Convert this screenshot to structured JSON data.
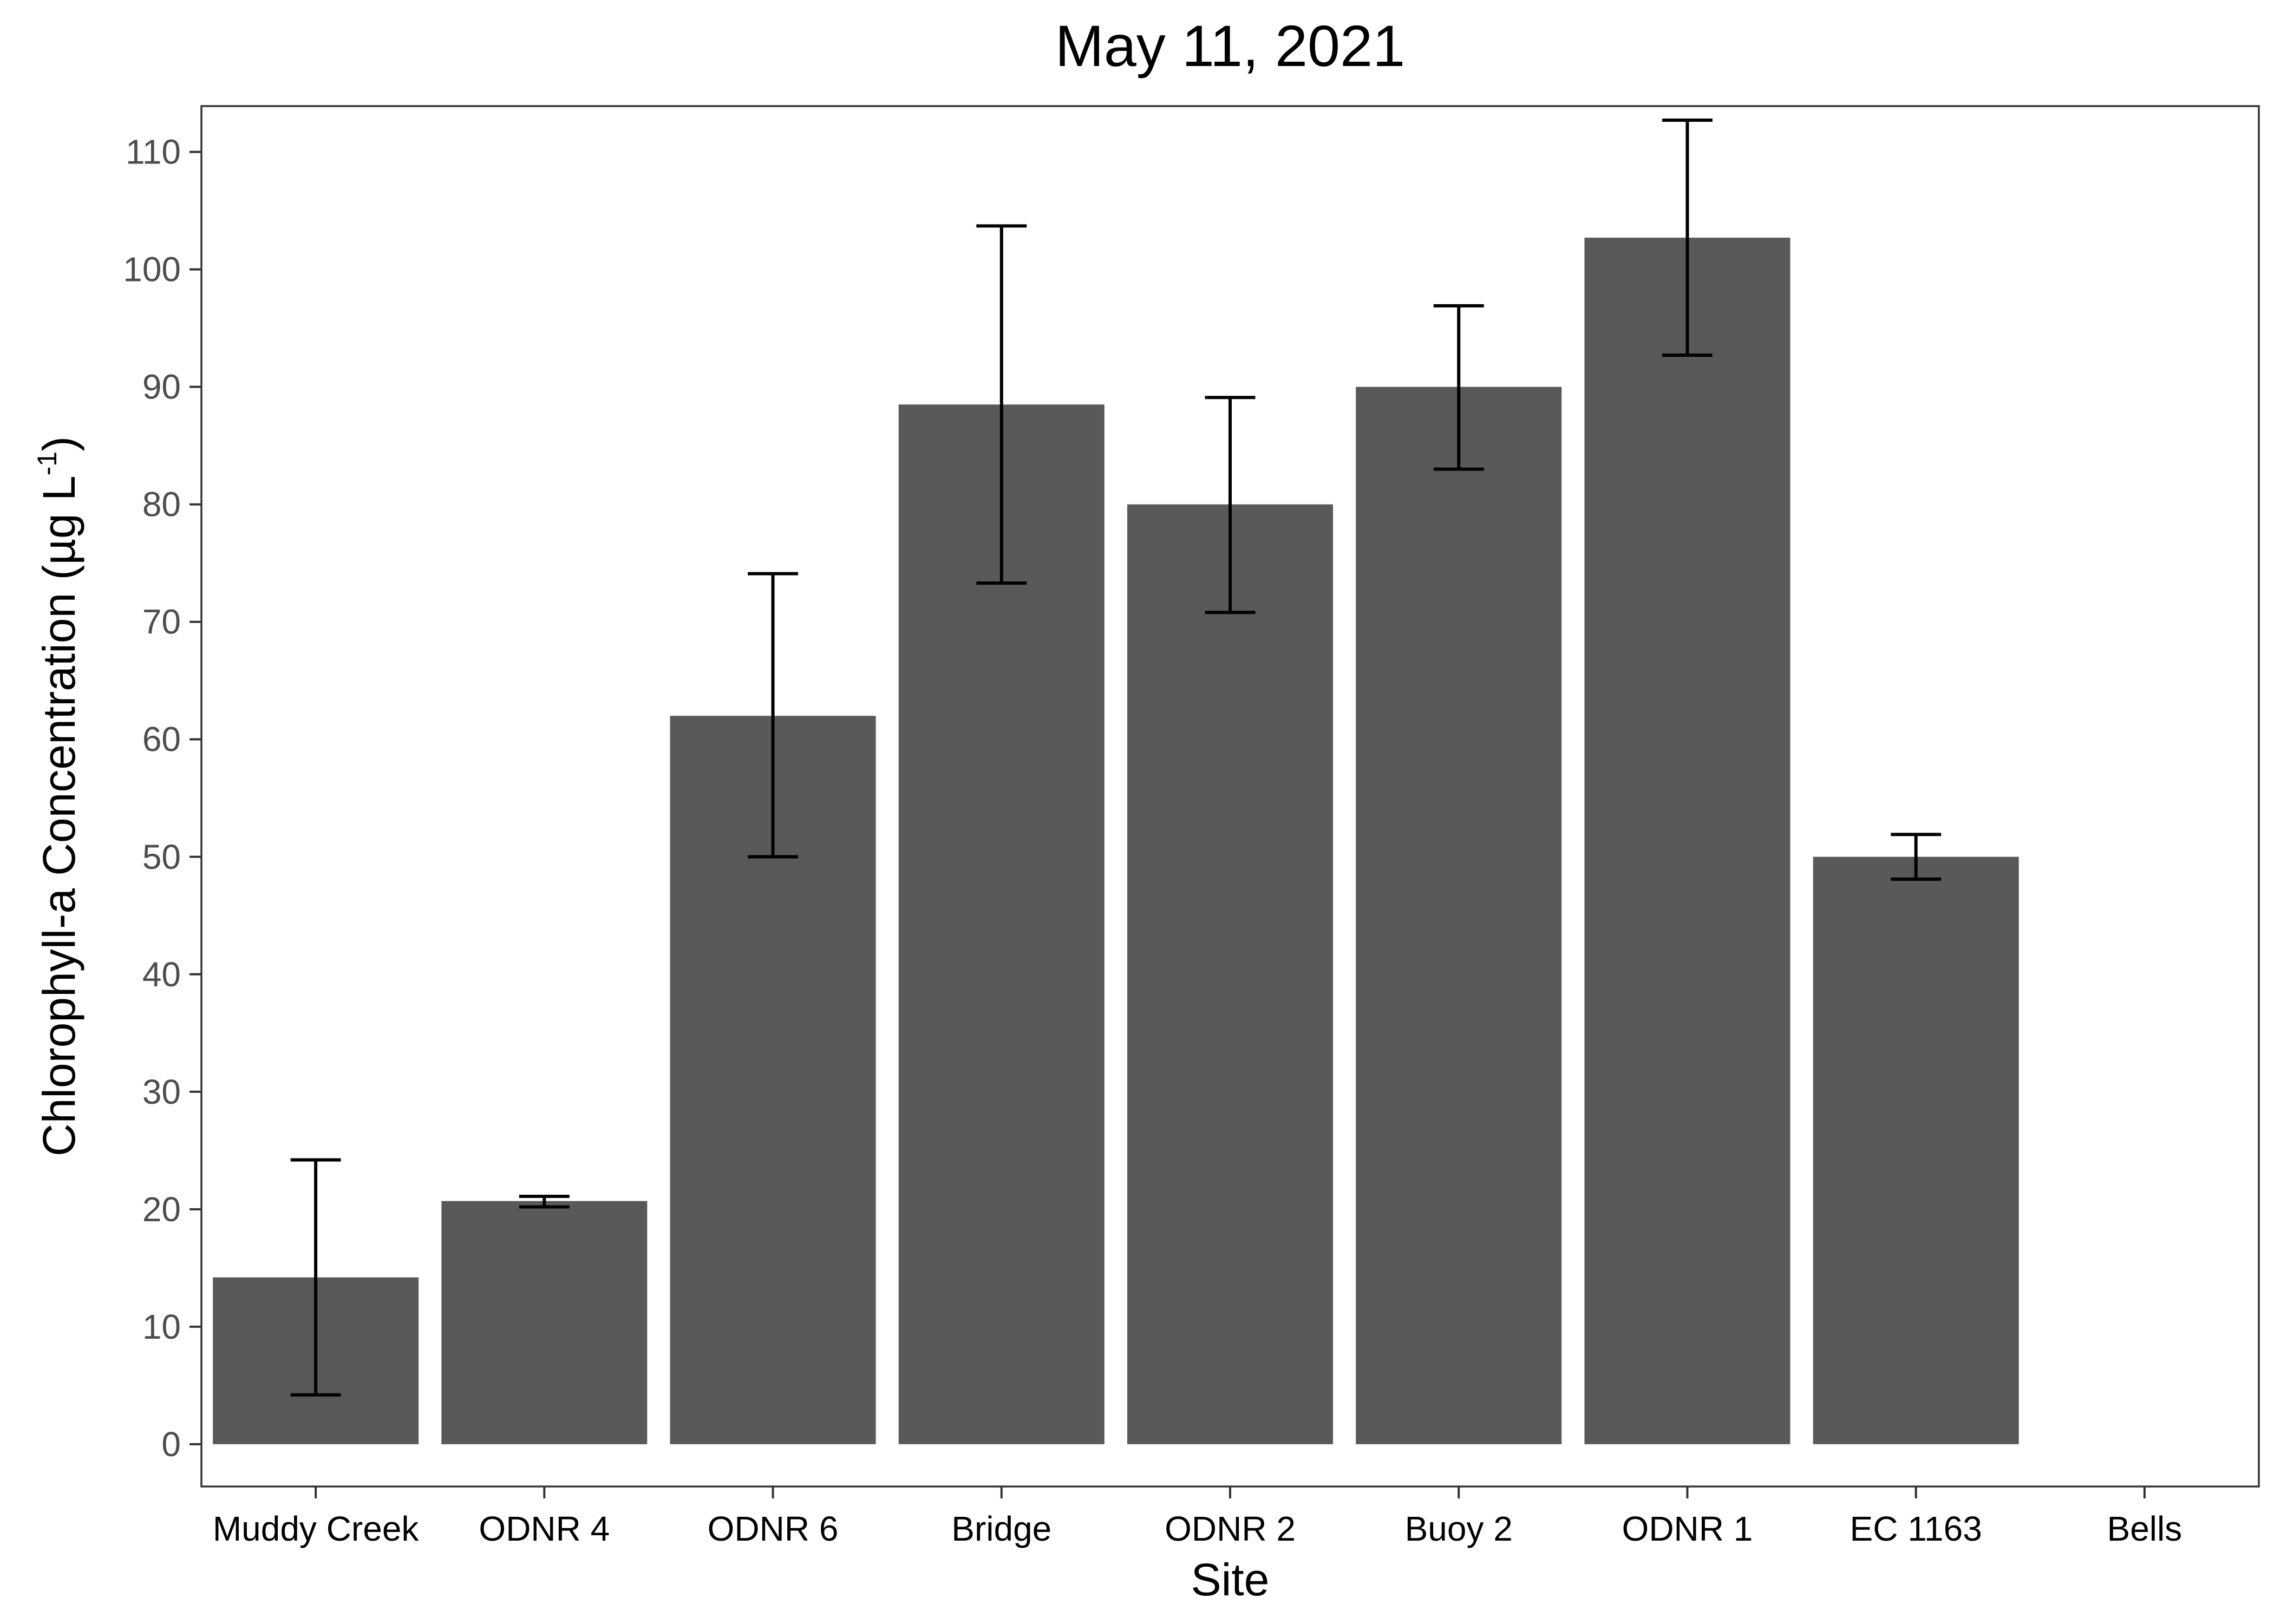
{
  "chart_data": {
    "type": "bar",
    "title": "May 11, 2021",
    "xlabel": "Site",
    "ylabel": {
      "main": "Chlorophyll-a Concentration (µg L",
      "superscript": "-1",
      "close": ")"
    },
    "categories": [
      "Muddy Creek",
      "ODNR 4",
      "ODNR 6",
      "Bridge",
      "ODNR 2",
      "Buoy 2",
      "ODNR 1",
      "EC 1163",
      "Bells"
    ],
    "values": [
      14.2,
      20.7,
      62.0,
      88.5,
      80.0,
      90.0,
      102.7,
      50.0,
      null
    ],
    "error_low": [
      4.2,
      20.2,
      50.0,
      73.3,
      70.8,
      83.0,
      92.7,
      48.1,
      null
    ],
    "error_high": [
      24.2,
      21.1,
      74.1,
      103.7,
      89.1,
      96.9,
      112.7,
      51.9,
      null
    ],
    "ylim": [
      -3.6,
      113.9
    ],
    "yticks": [
      0,
      10,
      20,
      30,
      40,
      50,
      60,
      70,
      80,
      90,
      100,
      110
    ],
    "grid": false,
    "legend": "none",
    "colors": {
      "bar": "#595959",
      "errorbar": "#000000",
      "axis": "#333333",
      "background": "#ffffff"
    }
  }
}
